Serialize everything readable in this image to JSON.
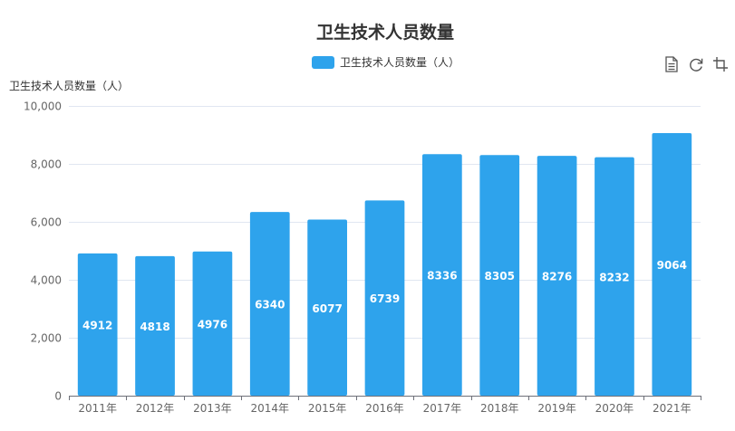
{
  "chart_data": {
    "type": "bar",
    "title": "卫生技术人员数量",
    "ylabel": "卫生技术人员数量（人）",
    "xlabel": "",
    "categories": [
      "2011年",
      "2012年",
      "2013年",
      "2014年",
      "2015年",
      "2016年",
      "2017年",
      "2018年",
      "2019年",
      "2020年",
      "2021年"
    ],
    "series": [
      {
        "name": "卫生技术人员数量（人）",
        "color": "#2ea3ec",
        "values": [
          4912,
          4818,
          4976,
          6340,
          6077,
          6739,
          8336,
          8305,
          8276,
          8232,
          9064
        ]
      }
    ],
    "ylim": [
      0,
      10000
    ],
    "yticks": [
      "0",
      "2,000",
      "4,000",
      "6,000",
      "8,000",
      "10,000"
    ],
    "grid": true,
    "legend_position": "top-center",
    "data_labels": "inside-center"
  },
  "toolbox": {
    "icons": [
      "data-view-icon",
      "restore-icon",
      "save-image-icon"
    ]
  }
}
